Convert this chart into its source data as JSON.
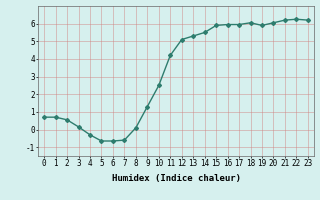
{
  "x": [
    0,
    1,
    2,
    3,
    4,
    5,
    6,
    7,
    8,
    9,
    10,
    11,
    12,
    13,
    14,
    15,
    16,
    17,
    18,
    19,
    20,
    21,
    22,
    23
  ],
  "y": [
    0.7,
    0.7,
    0.55,
    0.15,
    -0.3,
    -0.65,
    -0.65,
    -0.6,
    0.1,
    1.3,
    2.5,
    4.2,
    5.1,
    5.3,
    5.5,
    5.9,
    5.95,
    5.95,
    6.05,
    5.9,
    6.05,
    6.2,
    6.25,
    6.2
  ],
  "line_color": "#2e7d6e",
  "marker": "D",
  "marker_size": 2,
  "bg_color": "#d6f0ee",
  "grid_color": "#d08080",
  "xlabel": "Humidex (Indice chaleur)",
  "xlim": [
    -0.5,
    23.5
  ],
  "ylim": [
    -1.5,
    7.0
  ],
  "yticks": [
    -1,
    0,
    1,
    2,
    3,
    4,
    5,
    6
  ],
  "xticks": [
    0,
    1,
    2,
    3,
    4,
    5,
    6,
    7,
    8,
    9,
    10,
    11,
    12,
    13,
    14,
    15,
    16,
    17,
    18,
    19,
    20,
    21,
    22,
    23
  ],
  "xlabel_fontsize": 6.5,
  "tick_fontsize": 5.5,
  "line_width": 1.0,
  "fig_bg_color": "#d6f0ee"
}
